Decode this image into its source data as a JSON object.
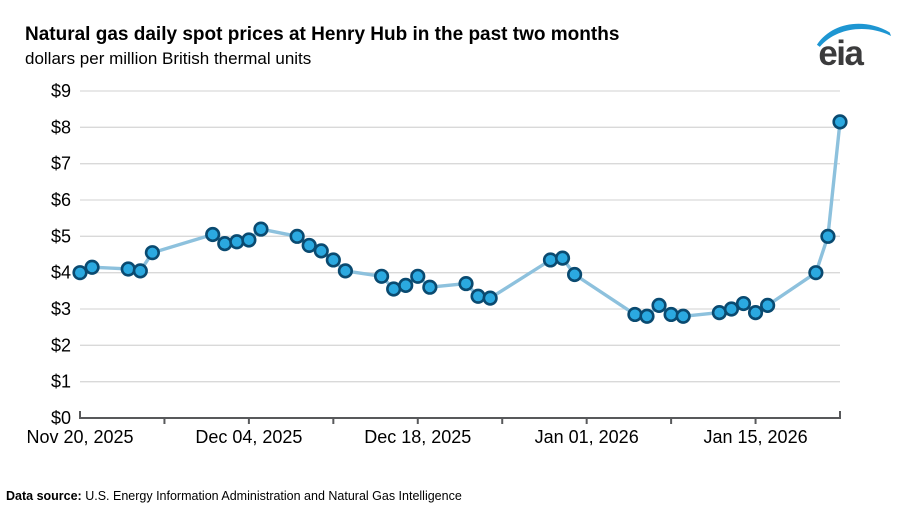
{
  "header": {
    "title": "Natural gas daily spot prices at Henry Hub in the past two months",
    "subtitle": "dollars per million British thermal units",
    "logo_text": "eia"
  },
  "chart_data": {
    "type": "line",
    "title": "Natural gas daily spot prices at Henry Hub in the past two months",
    "ylabel": "dollars per million British thermal units",
    "xlabel": "",
    "ylim": [
      0,
      9
    ],
    "ytick_step": 1,
    "ytick_labels": [
      "$0",
      "$1",
      "$2",
      "$3",
      "$4",
      "$5",
      "$6",
      "$7",
      "$8",
      "$9"
    ],
    "xticks": [
      {
        "label": "Nov 20, 2025",
        "date": "Nov 20, 2025"
      },
      {
        "label": "Dec 04, 2025",
        "date": "Dec 04, 2025"
      },
      {
        "label": "Dec 18, 2025",
        "date": "Dec 18, 2025"
      },
      {
        "label": "Jan 01, 2026",
        "date": "Jan 01, 2026"
      },
      {
        "label": "Jan 15, 2026",
        "date": "Jan 15, 2026"
      }
    ],
    "minor_xtick_interval_days": 7,
    "grid": "horizontal",
    "legend_position": "none",
    "series_name": "Henry Hub daily spot price",
    "points": [
      {
        "date": "Nov 20, 2025",
        "value": 4.0
      },
      {
        "date": "Nov 21, 2025",
        "value": 4.15
      },
      {
        "date": "Nov 24, 2025",
        "value": 4.1
      },
      {
        "date": "Nov 25, 2025",
        "value": 4.05
      },
      {
        "date": "Nov 26, 2025",
        "value": 4.55
      },
      {
        "date": "Dec 01, 2025",
        "value": 5.05
      },
      {
        "date": "Dec 02, 2025",
        "value": 4.8
      },
      {
        "date": "Dec 03, 2025",
        "value": 4.85
      },
      {
        "date": "Dec 04, 2025",
        "value": 4.9
      },
      {
        "date": "Dec 05, 2025",
        "value": 5.2
      },
      {
        "date": "Dec 08, 2025",
        "value": 5.0
      },
      {
        "date": "Dec 09, 2025",
        "value": 4.75
      },
      {
        "date": "Dec 10, 2025",
        "value": 4.6
      },
      {
        "date": "Dec 11, 2025",
        "value": 4.35
      },
      {
        "date": "Dec 12, 2025",
        "value": 4.05
      },
      {
        "date": "Dec 15, 2025",
        "value": 3.9
      },
      {
        "date": "Dec 16, 2025",
        "value": 3.55
      },
      {
        "date": "Dec 17, 2025",
        "value": 3.65
      },
      {
        "date": "Dec 18, 2025",
        "value": 3.9
      },
      {
        "date": "Dec 19, 2025",
        "value": 3.6
      },
      {
        "date": "Dec 22, 2025",
        "value": 3.7
      },
      {
        "date": "Dec 23, 2025",
        "value": 3.35
      },
      {
        "date": "Dec 24, 2025",
        "value": 3.3
      },
      {
        "date": "Dec 29, 2025",
        "value": 4.35
      },
      {
        "date": "Dec 30, 2025",
        "value": 4.4
      },
      {
        "date": "Dec 31, 2025",
        "value": 3.95
      },
      {
        "date": "Jan 05, 2026",
        "value": 2.85
      },
      {
        "date": "Jan 06, 2026",
        "value": 2.8
      },
      {
        "date": "Jan 07, 2026",
        "value": 3.1
      },
      {
        "date": "Jan 08, 2026",
        "value": 2.85
      },
      {
        "date": "Jan 09, 2026",
        "value": 2.8
      },
      {
        "date": "Jan 12, 2026",
        "value": 2.9
      },
      {
        "date": "Jan 13, 2026",
        "value": 3.0
      },
      {
        "date": "Jan 14, 2026",
        "value": 3.15
      },
      {
        "date": "Jan 15, 2026",
        "value": 2.9
      },
      {
        "date": "Jan 16, 2026",
        "value": 3.1
      },
      {
        "date": "Jan 20, 2026",
        "value": 4.0
      },
      {
        "date": "Jan 21, 2026",
        "value": 5.0
      },
      {
        "date": "Jan 22, 2026",
        "value": 8.15
      }
    ],
    "colors": {
      "line": "#8DC1DD",
      "marker_fill": "#2BA9E0",
      "marker_stroke": "#0A4A70",
      "gridline": "#D9D9D9",
      "axis": "#58595B",
      "text": "#000000",
      "logo_blue": "#1E96D2",
      "logo_text": "#3B3B3C"
    }
  },
  "footer": {
    "source_label": "Data source:",
    "source_text": " U.S. Energy Information Administration and Natural Gas Intelligence"
  }
}
